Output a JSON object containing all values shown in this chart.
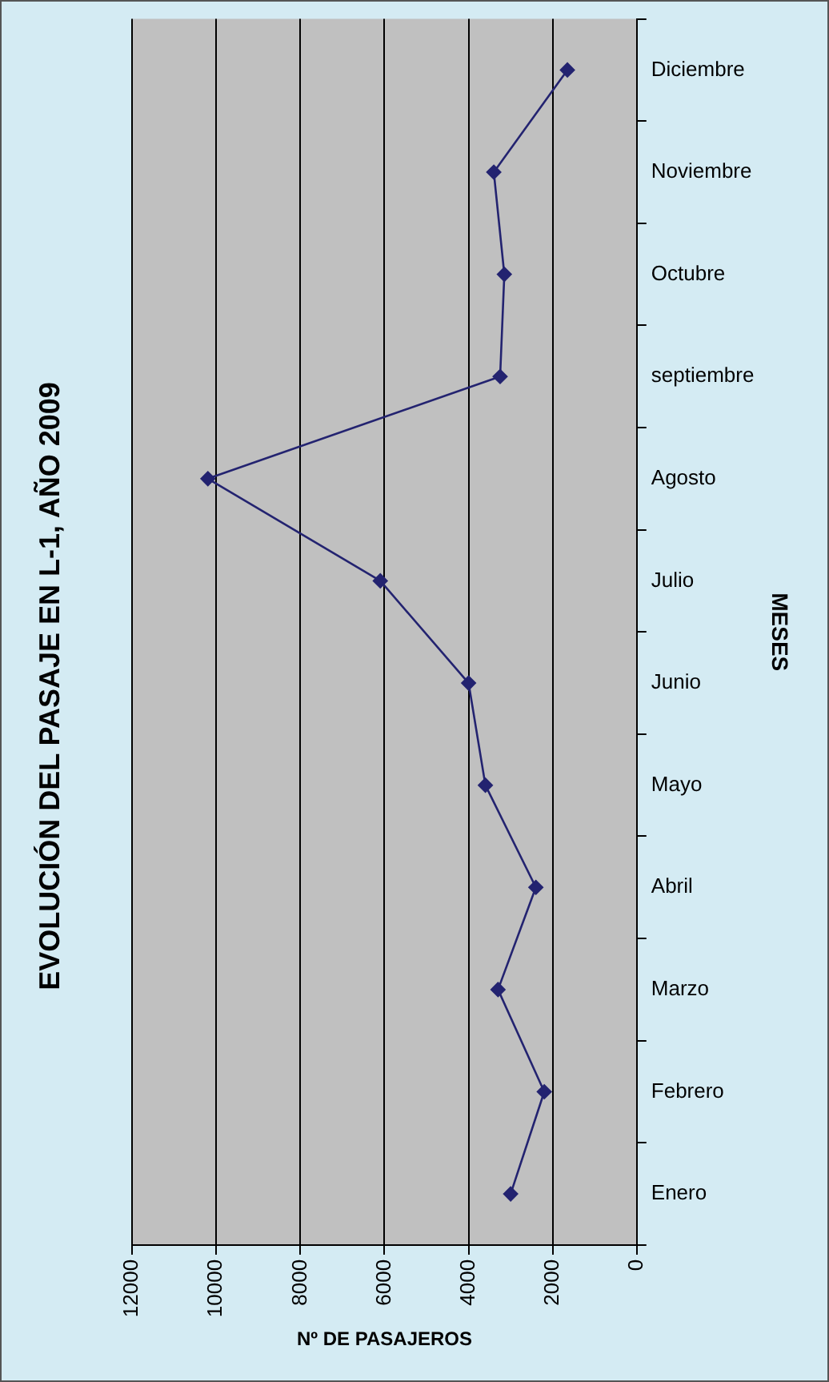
{
  "chart_data": {
    "type": "line",
    "orientation": "horizontal",
    "title": "EVOLUCIÓN DEL PASAJE EN L-1, AÑO 2009",
    "xlabel": "Nº DE PASAJEROS",
    "ylabel": "MESES",
    "categories": [
      "Diciembre",
      "Noviembre",
      "Octubre",
      "septiembre",
      "Agosto",
      "Julio",
      "Junio",
      "Mayo",
      "Abril",
      "Marzo",
      "Febrero",
      "Enero"
    ],
    "series": [
      {
        "color": "#232370",
        "values": [
          1650,
          3400,
          3150,
          3250,
          10200,
          6100,
          4000,
          3600,
          2400,
          3300,
          2200,
          3000
        ]
      }
    ],
    "xlim": [
      12000,
      0
    ],
    "xticks": [
      0,
      2000,
      4000,
      6000,
      8000,
      10000,
      12000
    ],
    "grid": "x",
    "legend": false,
    "marker": "diamond",
    "line_style": "solid"
  }
}
